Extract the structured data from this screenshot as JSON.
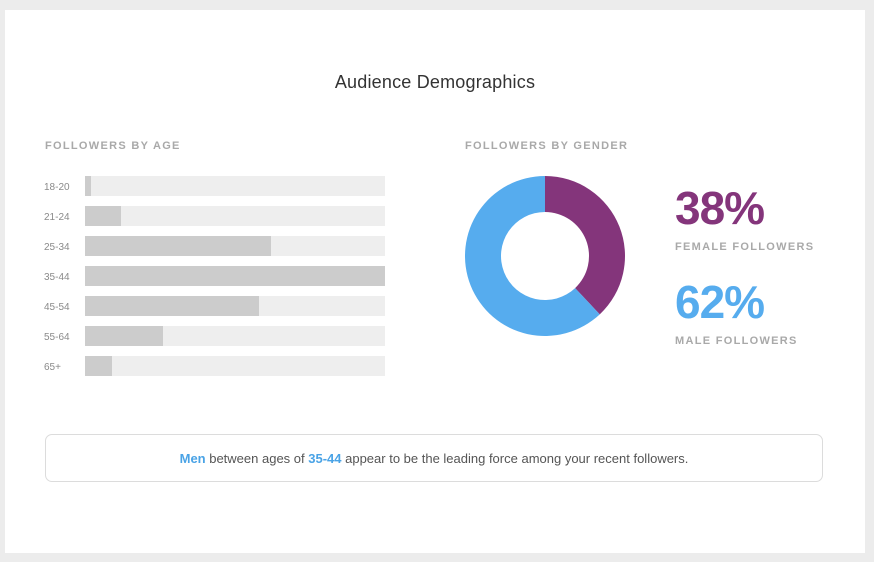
{
  "title": "Audience Demographics",
  "age_section_label": "FOLLOWERS BY AGE",
  "gender_section_label": "FOLLOWERS BY GENDER",
  "female": {
    "value": "38%",
    "label": "FEMALE FOLLOWERS"
  },
  "male": {
    "value": "62%",
    "label": "MALE FOLLOWERS"
  },
  "insight": {
    "part1": "Men",
    "part2": " between ages of ",
    "part3": "35-44",
    "part4": " appear to be the leading force among your recent followers."
  },
  "colors": {
    "female": "#84357b",
    "male": "#56acee",
    "bar_fill": "#cccccc",
    "bar_track": "#eeeeee",
    "highlight": "#4aa3e6"
  },
  "chart_data": [
    {
      "type": "bar",
      "orientation": "horizontal",
      "title": "FOLLOWERS BY AGE",
      "categories": [
        "18-20",
        "21-24",
        "25-34",
        "35-44",
        "45-54",
        "55-64",
        "65+"
      ],
      "values": [
        2,
        12,
        62,
        100,
        58,
        26,
        9
      ],
      "xlim": [
        0,
        100
      ],
      "grid": false,
      "legend": "none"
    },
    {
      "type": "pie",
      "style": "donut",
      "title": "FOLLOWERS BY GENDER",
      "labels": [
        "FEMALE FOLLOWERS",
        "MALE FOLLOWERS"
      ],
      "values": [
        38,
        62
      ],
      "colors": [
        "#84357b",
        "#56acee"
      ],
      "legend": "right"
    }
  ]
}
